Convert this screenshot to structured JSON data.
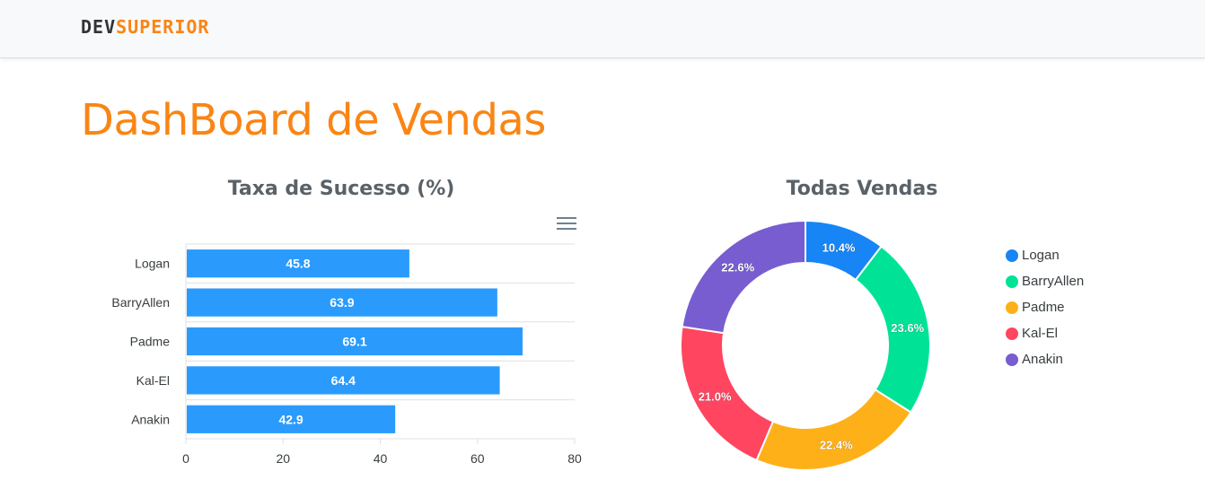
{
  "brand": {
    "part1": "DEV",
    "part2": "SUPERIOR"
  },
  "page": {
    "title": "DashBoard de Vendas"
  },
  "bar_chart_title": "Taxa de Sucesso (%)",
  "donut_chart_title": "Todas Vendas",
  "menu_icon": "hamburger-menu-icon",
  "colors": {
    "accent": "#fa8514",
    "bar": "#2a9bfc",
    "donut": [
      "#1785f5",
      "#00e396",
      "#feb019",
      "#ff4560",
      "#775dd0"
    ]
  },
  "chart_data": [
    {
      "type": "bar",
      "orientation": "horizontal",
      "title": "Taxa de Sucesso (%)",
      "categories": [
        "Logan",
        "BarryAllen",
        "Padme",
        "Kal-El",
        "Anakin"
      ],
      "values": [
        45.8,
        63.9,
        69.1,
        64.4,
        42.9
      ],
      "xlim": [
        0,
        80
      ],
      "x_ticks": [
        "0",
        "20",
        "40",
        "60",
        "80"
      ],
      "grid": true
    },
    {
      "type": "pie",
      "variant": "donut",
      "title": "Todas Vendas",
      "labels": [
        "Logan",
        "BarryAllen",
        "Padme",
        "Kal-El",
        "Anakin"
      ],
      "values": [
        10.4,
        23.6,
        22.4,
        21.0,
        22.6
      ],
      "value_labels": [
        "10.4%",
        "23.6%",
        "22.4%",
        "21.0%",
        "22.6%"
      ],
      "legend": "right"
    }
  ]
}
